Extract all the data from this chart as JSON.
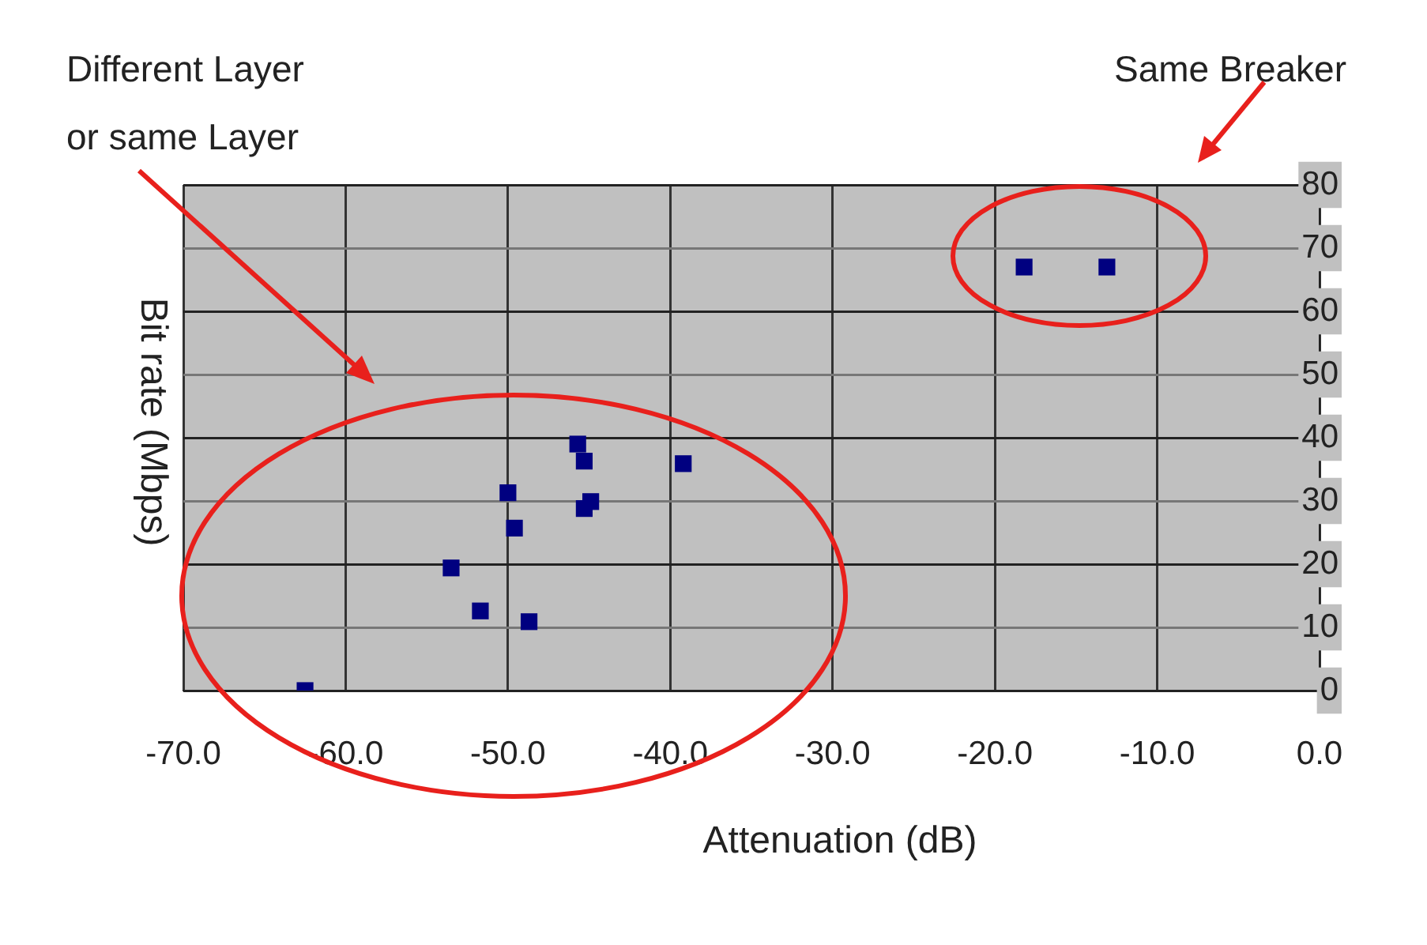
{
  "chart_data": {
    "type": "scatter",
    "xlabel": "Attenuation (dB)",
    "ylabel": "Bit rate (Mbps)",
    "annotations": [
      "Different Layer\nor same Layer",
      "Same Breaker"
    ],
    "series": [
      {
        "color": "#000080",
        "x": [
          -62.5,
          -53.5,
          -51.7,
          -48.7,
          -50.0,
          -49.6,
          -45.7,
          -45.3,
          -45.3,
          -44.9,
          -39.2,
          -18.2,
          -13.1
        ],
        "values": [
          0,
          19.4,
          12.6,
          10.9,
          31.3,
          25.7,
          39,
          36.3,
          28.8,
          29.9,
          35.9,
          67,
          67
        ]
      }
    ],
    "xlim": [
      -70,
      0
    ],
    "xticks": [
      {
        "value": -70,
        "label": "-70.0"
      },
      {
        "value": -60,
        "label": "-60.0"
      },
      {
        "value": -50,
        "label": "-50.0"
      },
      {
        "value": -40,
        "label": "-40.0"
      },
      {
        "value": -30,
        "label": "-30.0"
      },
      {
        "value": -20,
        "label": "-20.0"
      },
      {
        "value": -10,
        "label": "-10.0"
      },
      {
        "value": 0,
        "label": "0.0"
      }
    ],
    "ylim": [
      0,
      80
    ],
    "yticks": [
      0,
      10,
      20,
      30,
      40,
      50,
      60,
      70,
      80
    ],
    "grid": true,
    "legend": false,
    "marker": "square"
  }
}
